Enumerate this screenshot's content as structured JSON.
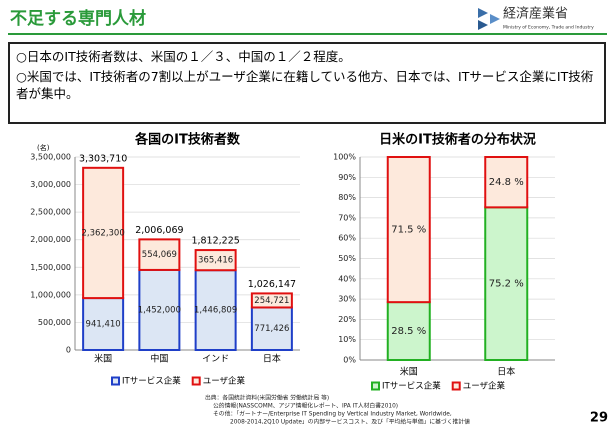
{
  "header": {
    "title": "不足する専門人材",
    "logo": "経済産業省",
    "logo_sub": "Ministry of Economy, Trade and Industry"
  },
  "bullets": [
    "○日本のIT技術者数は、米国の１／３、中国の１／２程度。",
    "○米国では、IT技術者の7割以上がユーザ企業に在籍している他方、日本では、ITサービス企業にIT技術者が集中。"
  ],
  "chart_data": [
    {
      "type": "stacked_bar",
      "title": "各国のIT技術者数",
      "y_unit": "(名)",
      "categories": [
        "米国",
        "中国",
        "インド",
        "日本"
      ],
      "series": [
        {
          "name": "ITサービス企業",
          "color": "#dce6f4",
          "edgecolor": "#1f3fc8",
          "values": [
            941410,
            1452000,
            1446809,
            771426
          ],
          "value_labels": [
            "941,410",
            "1,452,000",
            "1,446,809",
            "771,426"
          ]
        },
        {
          "name": "ユーザ企業",
          "color": "#fde9dc",
          "edgecolor": "#e01010",
          "values": [
            2362300,
            554069,
            365416,
            254721
          ],
          "value_labels": [
            "2,362,300",
            "554,069",
            "365,416",
            "254,721"
          ]
        }
      ],
      "total_labels": [
        "3,303,710",
        "2,006,069",
        "1,812,225",
        "1,026,147"
      ],
      "ylim": [
        0,
        3500000
      ],
      "yticks": [
        0,
        {
          "value": 500000,
          "label": "500,000"
        },
        {
          "value": 1000000,
          "label": "1,000,000"
        },
        {
          "value": 1500000,
          "label": "1,500,000"
        },
        {
          "value": 2000000,
          "label": "2,000,000"
        },
        {
          "value": 2500000,
          "label": "2,500,000"
        },
        {
          "value": 3000000,
          "label": "3,000,000"
        },
        {
          "value": 3500000,
          "label": "3,500,000"
        }
      ],
      "grid": true
    },
    {
      "type": "stacked_bar",
      "title": "日米のIT技術者の分布状況",
      "categories": [
        "米国",
        "日本"
      ],
      "series": [
        {
          "name": "ITサービス企業",
          "color": "#ccf5cc",
          "edgecolor": "#22b022",
          "values": [
            28.5,
            75.2
          ],
          "value_labels": [
            "28.5 %",
            "75.2 %"
          ]
        },
        {
          "name": "ユーザ企業",
          "color": "#fde9dc",
          "edgecolor": "#e01010",
          "values": [
            71.5,
            24.8
          ],
          "value_labels": [
            "71.5 %",
            "24.8 %"
          ]
        }
      ],
      "ylim": [
        0,
        100
      ],
      "yticks": [
        {
          "value": 0,
          "label": "0%"
        },
        {
          "value": 10,
          "label": "10%"
        },
        {
          "value": 20,
          "label": "20%"
        },
        {
          "value": 30,
          "label": "30%"
        },
        {
          "value": 40,
          "label": "40%"
        },
        {
          "value": 50,
          "label": "50%"
        },
        {
          "value": 60,
          "label": "60%"
        },
        {
          "value": 70,
          "label": "70%"
        },
        {
          "value": 80,
          "label": "80%"
        },
        {
          "value": 90,
          "label": "90%"
        },
        {
          "value": 100,
          "label": "100%"
        }
      ],
      "grid": true
    }
  ],
  "source": [
    "出典：各国統計資料(米国労働省 労働統計局 等)",
    "公的情報(NASSCOMM、アジア情報化レポート、IPA IT人材白書2010)",
    "その他：「ガートナー/Enterprise IT Spending by Vertical Industry Market, Worldwide,",
    "2008-2014,2Q10 Update」の内部サービスコスト、及び「平均給与単価」に基づく推計値"
  ],
  "page_number": "29"
}
